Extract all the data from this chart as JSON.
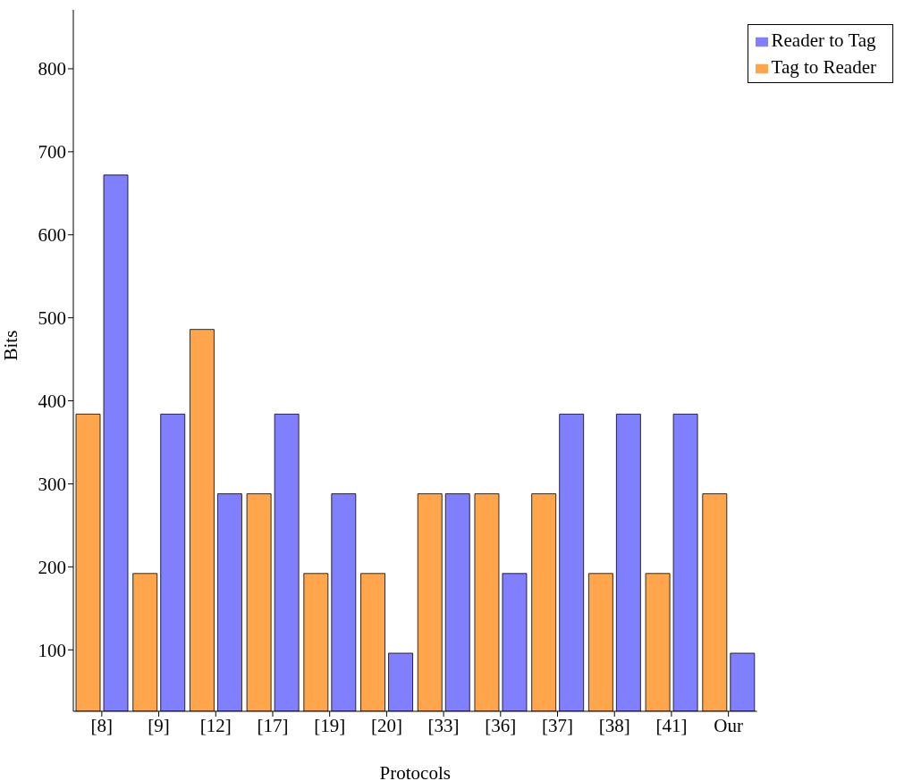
{
  "chart_data": {
    "type": "bar",
    "xlabel": "Protocols",
    "ylabel": "Bits",
    "categories": [
      "[8]",
      "[9]",
      "[12]",
      "[17]",
      "[19]",
      "[20]",
      "[33]",
      "[36]",
      "[37]",
      "[38]",
      "[41]",
      "Our"
    ],
    "series": [
      {
        "name": "Tag to Reader",
        "color": "#ffa64d",
        "values": [
          384,
          192,
          486,
          288,
          192,
          192,
          288,
          288,
          288,
          192,
          192,
          288
        ]
      },
      {
        "name": "Reader to Tag",
        "color": "#8080ff",
        "values": [
          672,
          384,
          288,
          384,
          288,
          96,
          288,
          192,
          384,
          384,
          384,
          96
        ]
      }
    ],
    "ylim": [
      26,
      871
    ],
    "yticks": [
      100,
      200,
      300,
      400,
      500,
      600,
      700,
      800
    ],
    "grid": false,
    "legend": "top right"
  }
}
